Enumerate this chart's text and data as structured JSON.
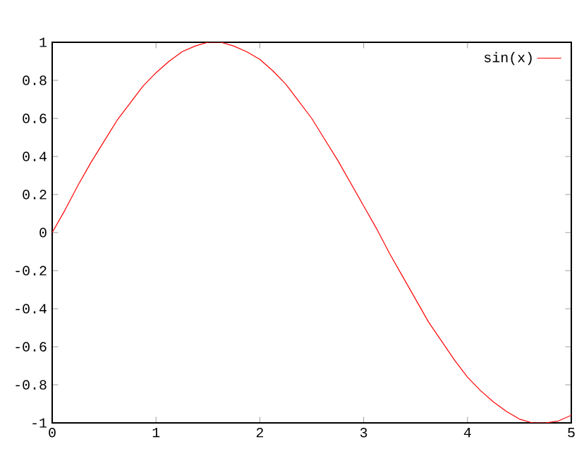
{
  "chart_data": {
    "type": "line",
    "xlim": [
      0,
      5
    ],
    "ylim": [
      -1,
      1
    ],
    "xticks": [
      0,
      1,
      2,
      3,
      4,
      5
    ],
    "yticks": [
      -1,
      -0.8,
      -0.6,
      -0.4,
      -0.2,
      0,
      0.2,
      0.4,
      0.6,
      0.8,
      1
    ],
    "legend": "top right",
    "grid": false,
    "marker": "none",
    "line_style": "solid",
    "series": [
      {
        "name": "sin(x)",
        "color": "#ff0000",
        "x": [
          0,
          0.125,
          0.25,
          0.375,
          0.5,
          0.625,
          0.75,
          0.875,
          1,
          1.125,
          1.25,
          1.375,
          1.5,
          1.625,
          1.75,
          1.875,
          2,
          2.125,
          2.25,
          2.375,
          2.5,
          2.625,
          2.75,
          2.875,
          3,
          3.125,
          3.25,
          3.375,
          3.5,
          3.625,
          3.75,
          3.875,
          4,
          4.125,
          4.25,
          4.375,
          4.5,
          4.625,
          4.75,
          4.875,
          5
        ],
        "values": [
          0.0,
          0.12,
          0.25,
          0.37,
          0.48,
          0.59,
          0.68,
          0.77,
          0.84,
          0.9,
          0.95,
          0.98,
          1.0,
          1.0,
          0.98,
          0.95,
          0.91,
          0.85,
          0.78,
          0.69,
          0.6,
          0.49,
          0.38,
          0.26,
          0.14,
          0.02,
          -0.11,
          -0.23,
          -0.35,
          -0.47,
          -0.57,
          -0.67,
          -0.76,
          -0.83,
          -0.89,
          -0.94,
          -0.98,
          -1.0,
          -1.0,
          -0.99,
          -0.96
        ]
      }
    ]
  }
}
